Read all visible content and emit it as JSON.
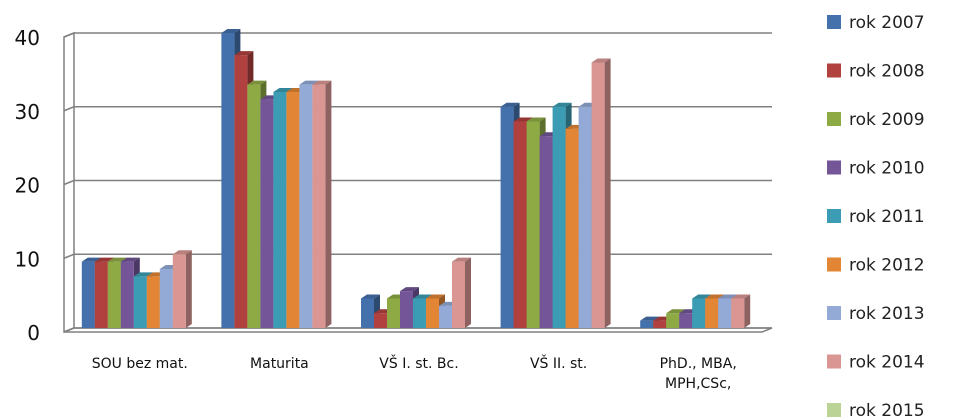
{
  "chart_data": {
    "type": "bar",
    "title": "",
    "xlabel": "",
    "ylabel": "",
    "ylim": [
      0,
      40
    ],
    "yticks": [
      0,
      10,
      20,
      30,
      40
    ],
    "grid": true,
    "legend_position": "right",
    "categories": [
      [
        "SOU bez mat."
      ],
      [
        "Maturita"
      ],
      [
        "VŠ I. st. Bc."
      ],
      [
        "VŠ II. st."
      ],
      [
        "PhD., MBA,",
        "MPH,CSc,"
      ]
    ],
    "series": [
      {
        "name": "rok 2007",
        "color": "#4470AC",
        "values": [
          9,
          40,
          4,
          30,
          1
        ]
      },
      {
        "name": "rok 2008",
        "color": "#B0413E",
        "values": [
          9,
          37,
          2,
          28,
          1
        ]
      },
      {
        "name": "rok 2009",
        "color": "#8EAA44",
        "values": [
          9,
          33,
          4,
          28,
          2
        ]
      },
      {
        "name": "rok 2010",
        "color": "#735598",
        "values": [
          9,
          31,
          5,
          26,
          2
        ]
      },
      {
        "name": "rok 2011",
        "color": "#3C9CB3",
        "values": [
          7,
          32,
          4,
          30,
          4
        ]
      },
      {
        "name": "rok 2012",
        "color": "#E28535",
        "values": [
          7,
          32,
          4,
          27,
          4
        ]
      },
      {
        "name": "rok 2013",
        "color": "#93AAD6",
        "values": [
          8,
          33,
          3,
          30,
          4
        ]
      },
      {
        "name": "rok 2014",
        "color": "#DA9693",
        "values": [
          10,
          33,
          9,
          36,
          4
        ]
      },
      {
        "name": "rok 2015",
        "color": "#BBD495",
        "values": [
          null,
          null,
          null,
          null,
          null
        ]
      }
    ]
  }
}
